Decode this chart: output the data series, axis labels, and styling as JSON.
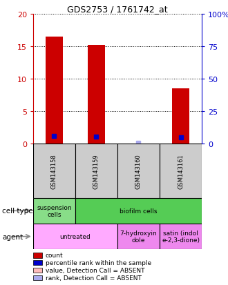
{
  "title": "GDS2753 / 1761742_at",
  "samples": [
    "GSM143158",
    "GSM143159",
    "GSM143160",
    "GSM143161"
  ],
  "bar_values": [
    16.5,
    15.2,
    0.0,
    8.5
  ],
  "bar_absent": [
    false,
    false,
    true,
    false
  ],
  "percentile_values": [
    6.0,
    5.1,
    0.8,
    4.6
  ],
  "percentile_absent": [
    false,
    false,
    true,
    false
  ],
  "ylim_left": [
    0,
    20
  ],
  "ylim_right": [
    0,
    100
  ],
  "yticks_left": [
    0,
    5,
    10,
    15,
    20
  ],
  "yticks_right": [
    0,
    25,
    50,
    75,
    100
  ],
  "bar_color_present": "#cc0000",
  "bar_color_absent": "#ffbbbb",
  "dot_color_present": "#0000cc",
  "dot_color_absent": "#aaaaee",
  "bar_width": 0.4,
  "cell_type_row": [
    {
      "label": "suspension\ncells",
      "colspan": 1,
      "color": "#88dd88"
    },
    {
      "label": "biofilm cells",
      "colspan": 3,
      "color": "#55cc55"
    }
  ],
  "agent_row": [
    {
      "label": "untreated",
      "colspan": 2,
      "color": "#ffaaff"
    },
    {
      "label": "7-hydroxyin\ndole",
      "colspan": 1,
      "color": "#ee88ee"
    },
    {
      "label": "satin (indol\ne-2,3-dione)",
      "colspan": 1,
      "color": "#ee88ee"
    }
  ],
  "legend_items": [
    {
      "color": "#cc0000",
      "label": "count"
    },
    {
      "color": "#0000cc",
      "label": "percentile rank within the sample"
    },
    {
      "color": "#ffbbbb",
      "label": "value, Detection Call = ABSENT"
    },
    {
      "color": "#aaaaee",
      "label": "rank, Detection Call = ABSENT"
    }
  ],
  "left_tick_color": "#cc0000",
  "right_tick_color": "#0000cc",
  "sample_box_color": "#cccccc"
}
